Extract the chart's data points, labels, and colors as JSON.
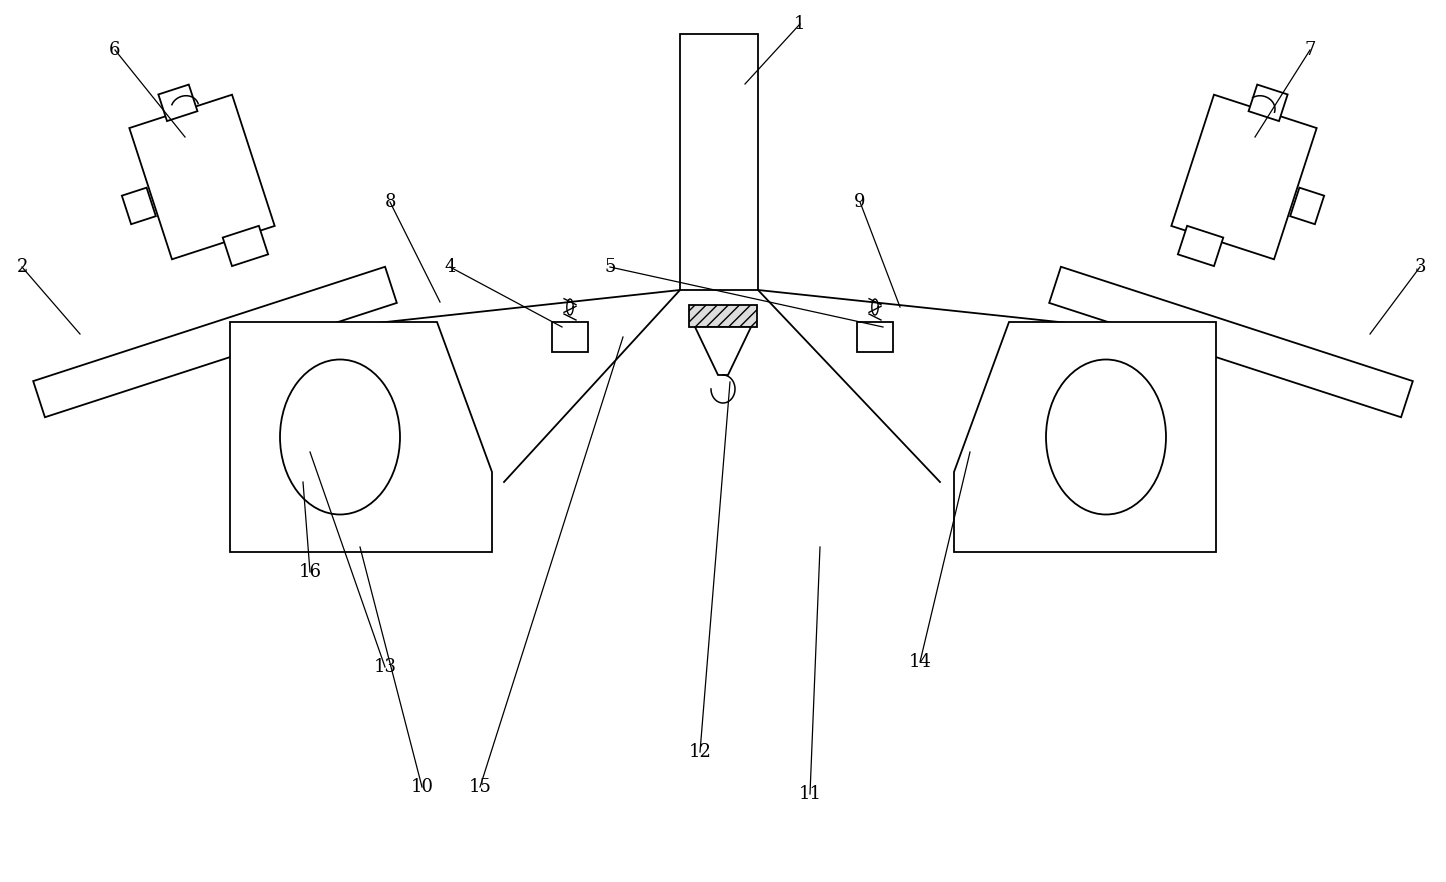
{
  "background_color": "#ffffff",
  "line_color": "#000000",
  "label_fontsize": 13,
  "fig_width": 14.46,
  "fig_height": 8.82
}
